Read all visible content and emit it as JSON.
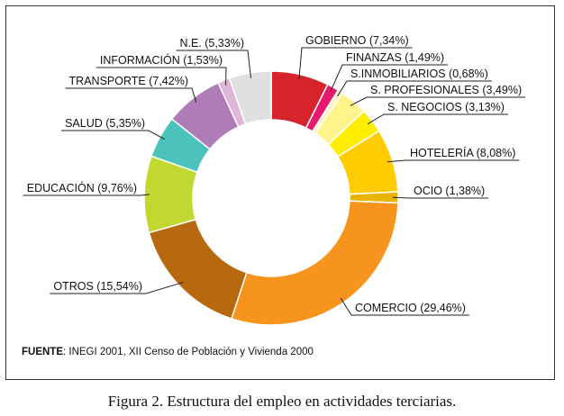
{
  "chart_data": {
    "type": "pie",
    "variant": "donut",
    "title": "",
    "slices": [
      {
        "label": "GOBIERNO (7,34%)",
        "category": "GOBIERNO",
        "value": 7.34,
        "color": "#d7242c"
      },
      {
        "label": "FINANZAS (1,49%)",
        "category": "FINANZAS",
        "value": 1.49,
        "color": "#e8186f"
      },
      {
        "label": "S.INMOBILIARIOS (0,68%)",
        "category": "S.INMOBILIARIOS",
        "value": 0.68,
        "color": "#fff2c2"
      },
      {
        "label": "S. PROFESIONALES (3,49%)",
        "category": "S. PROFESIONALES",
        "value": 3.49,
        "color": "#fff48c"
      },
      {
        "label": "S. NEGOCIOS (3,13%)",
        "category": "S. NEGOCIOS",
        "value": 3.13,
        "color": "#ffee00"
      },
      {
        "label": "HOTELERÍA (8,08%)",
        "category": "HOTELERÍA",
        "value": 8.08,
        "color": "#ffcc00"
      },
      {
        "label": "OCIO (1,38%)",
        "category": "OCIO",
        "value": 1.38,
        "color": "#e8b400"
      },
      {
        "label": "COMERCIO (29,46%)",
        "category": "COMERCIO",
        "value": 29.46,
        "color": "#f7941d"
      },
      {
        "label": "OTROS (15,54%)",
        "category": "OTROS",
        "value": 15.54,
        "color": "#b8690f"
      },
      {
        "label": "EDUCACIÓN (9,76%)",
        "category": "EDUCACIÓN",
        "value": 9.76,
        "color": "#c0d82f"
      },
      {
        "label": "SALUD (5,35%)",
        "category": "SALUD",
        "value": 5.35,
        "color": "#4cc2bd"
      },
      {
        "label": "TRANSPORTE (7,42%)",
        "category": "TRANSPORTE",
        "value": 7.42,
        "color": "#b07cb7"
      },
      {
        "label": "INFORMACIÓN (1,53%)",
        "category": "INFORMACIÓN",
        "value": 1.53,
        "color": "#dfb6d8"
      },
      {
        "label": "N.E. (5,33%)",
        "category": "N.E.",
        "value": 5.33,
        "color": "#e0e0e0"
      }
    ]
  },
  "source": {
    "prefix": "FUENTE",
    "text": ": INEGI 2001, XII Censo de Población y Vivienda 2000"
  },
  "caption": "Figura 2. Estructura del empleo en actividades terciarias."
}
